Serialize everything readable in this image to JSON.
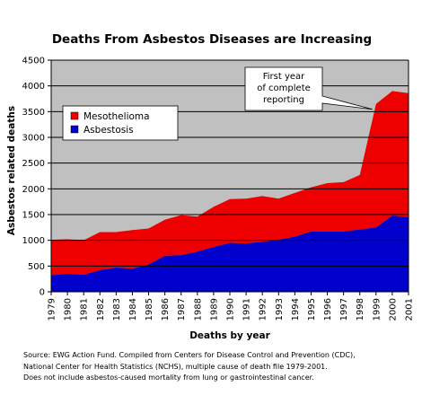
{
  "chart_data": {
    "type": "area",
    "stacked": true,
    "title": "Deaths From Asbestos Diseases are Increasing",
    "xlabel": "Deaths by year",
    "ylabel": "Asbestos related deaths",
    "ylim": [
      0,
      4500
    ],
    "yticks": [
      0,
      500,
      1000,
      1500,
      2000,
      2500,
      3000,
      3500,
      4000,
      4500
    ],
    "grid": true,
    "legend_position": "left-middle",
    "categories": [
      "1979",
      "1980",
      "1981",
      "1982",
      "1983",
      "1984",
      "1985",
      "1986",
      "1987",
      "1988",
      "1989",
      "1990",
      "1991",
      "1992",
      "1993",
      "1994",
      "1995",
      "1996",
      "1997",
      "1998",
      "1999",
      "2000",
      "2001"
    ],
    "series": [
      {
        "name": "Asbestosis",
        "color": "#0000cc",
        "values": [
          320,
          350,
          330,
          420,
          470,
          450,
          530,
          700,
          710,
          780,
          870,
          950,
          940,
          970,
          1010,
          1070,
          1170,
          1170,
          1170,
          1210,
          1250,
          1480,
          1450
        ]
      },
      {
        "name": "Mesothelioma",
        "color": "#ee0000",
        "values": [
          690,
          670,
          670,
          740,
          690,
          750,
          700,
          700,
          780,
          680,
          780,
          850,
          870,
          890,
          800,
          850,
          860,
          940,
          960,
          1060,
          2400,
          2420,
          2410
        ]
      }
    ],
    "annotation": {
      "lines": [
        "First year",
        "of complete",
        "reporting"
      ],
      "points_to": "1999"
    }
  },
  "source_note": [
    "Source: EWG Action Fund. Compiled from Centers for Disease Control and Prevention (CDC),",
    "National Center for Health Statistics (NCHS), multiple cause of death file 1979-2001.",
    "Does not include asbestos-caused mortality from lung or gastrointestinal cancer."
  ],
  "colors": {
    "plot_background": "#c0c0c0",
    "grid": "#000000"
  }
}
